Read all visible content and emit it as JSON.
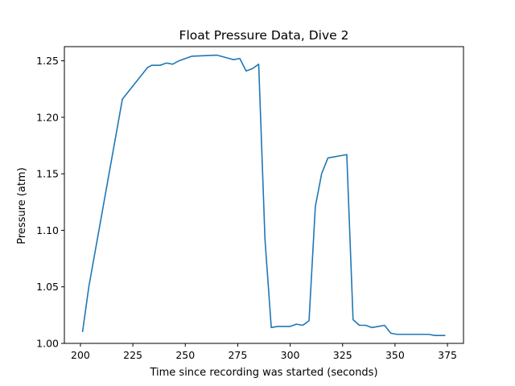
{
  "chart_data": {
    "type": "line",
    "title": "Float Pressure Data, Dive 2",
    "xlabel": "Time since recording was started (seconds)",
    "ylabel": "Pressure (atm)",
    "xlim": [
      192.35,
      382.65
    ],
    "ylim": [
      1.0,
      1.2625
    ],
    "xticks": [
      200,
      225,
      250,
      275,
      300,
      325,
      350,
      375
    ],
    "yticks": [
      1.0,
      1.05,
      1.1,
      1.15,
      1.2,
      1.25
    ],
    "xtick_labels": [
      "200",
      "225",
      "250",
      "275",
      "300",
      "325",
      "350",
      "375"
    ],
    "ytick_labels": [
      "1.00",
      "1.05",
      "1.10",
      "1.15",
      "1.20",
      "1.25"
    ],
    "grid": false,
    "series": [
      {
        "color": "#1f77b4",
        "x": [
          201,
          204,
          220,
          223,
          232,
          234,
          236,
          238,
          241,
          244,
          247,
          253,
          265,
          271,
          273,
          276,
          279,
          282,
          285,
          288,
          291,
          294,
          297,
          300,
          303,
          306,
          309,
          312,
          315,
          318,
          321,
          324,
          327,
          330,
          333,
          336,
          339,
          342,
          345,
          348,
          351,
          354,
          357,
          360,
          363,
          366,
          369,
          372,
          374
        ],
        "y": [
          1.01,
          1.05,
          1.216,
          1.223,
          1.244,
          1.246,
          1.246,
          1.246,
          1.248,
          1.247,
          1.25,
          1.254,
          1.255,
          1.252,
          1.251,
          1.252,
          1.241,
          1.243,
          1.247,
          1.092,
          1.014,
          1.015,
          1.015,
          1.015,
          1.017,
          1.016,
          1.02,
          1.121,
          1.15,
          1.164,
          1.165,
          1.166,
          1.167,
          1.021,
          1.016,
          1.016,
          1.014,
          1.015,
          1.016,
          1.009,
          1.008,
          1.008,
          1.008,
          1.008,
          1.008,
          1.008,
          1.007,
          1.007,
          1.007
        ]
      }
    ]
  }
}
